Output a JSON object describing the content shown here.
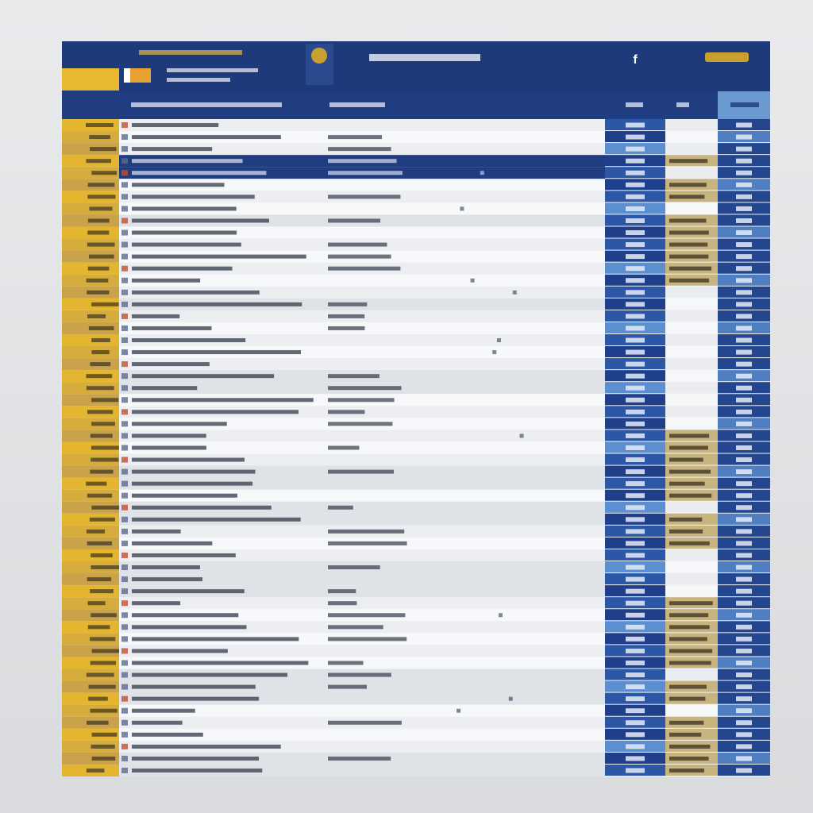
{
  "header": {
    "icon": "f"
  }
}
